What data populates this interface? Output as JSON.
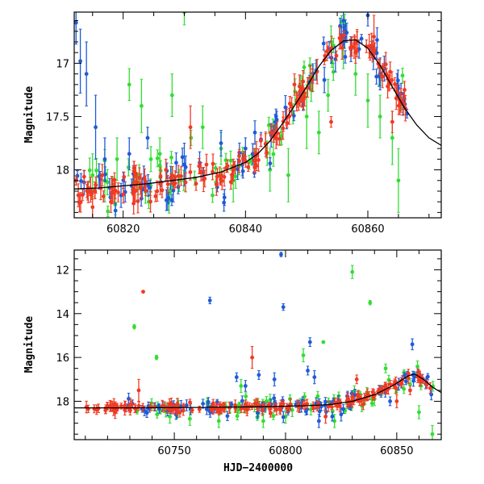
{
  "chart_data": [
    {
      "type": "scatter",
      "panel": "top",
      "xlabel": "",
      "ylabel": "Magnitude",
      "xlim": [
        60812,
        60872
      ],
      "ylim": [
        18.45,
        16.52
      ],
      "y_inverted": true,
      "xticks": [
        60820,
        60840,
        60860
      ],
      "yticks": [
        17,
        17.5,
        18
      ],
      "ytick_labels": [
        "17",
        "17.5",
        "18"
      ],
      "colors": {
        "blue": "#1f5bd8",
        "green": "#33dd33",
        "red": "#f03a24"
      },
      "series_meta": [
        {
          "key": "blue"
        },
        {
          "key": "green"
        },
        {
          "key": "red"
        }
      ],
      "model": [
        [
          60812,
          18.18
        ],
        [
          60816,
          18.17
        ],
        [
          60820,
          18.15
        ],
        [
          60824,
          18.13
        ],
        [
          60828,
          18.1
        ],
        [
          60832,
          18.07
        ],
        [
          60836,
          18.02
        ],
        [
          60840,
          17.93
        ],
        [
          60842,
          17.85
        ],
        [
          60844,
          17.73
        ],
        [
          60846,
          17.57
        ],
        [
          60848,
          17.4
        ],
        [
          60850,
          17.22
        ],
        [
          60852,
          17.03
        ],
        [
          60854,
          16.88
        ],
        [
          60856,
          16.79
        ],
        [
          60858,
          16.78
        ],
        [
          60860,
          16.86
        ],
        [
          60862,
          17.02
        ],
        [
          60864,
          17.22
        ],
        [
          60866,
          17.42
        ],
        [
          60868,
          17.58
        ],
        [
          60870,
          17.7
        ],
        [
          60872,
          17.77
        ]
      ],
      "outliers": {
        "blue": [
          [
            60812.3,
            16.62,
            0.2
          ],
          [
            60813,
            16.98,
            0.3
          ],
          [
            60814,
            17.1,
            0.3
          ],
          [
            60815.5,
            17.6,
            0.3
          ],
          [
            60817,
            17.9,
            0.2
          ],
          [
            60821,
            17.85,
            0.15
          ],
          [
            60824,
            17.7,
            0.1
          ],
          [
            60830,
            17.95,
            0.2
          ],
          [
            60836,
            17.75,
            0.12
          ],
          [
            60840,
            17.8,
            0.1
          ],
          [
            60856,
            16.6,
            0.1
          ],
          [
            60860,
            16.55,
            0.1
          ],
          [
            60862,
            17.1,
            0.15
          ]
        ],
        "green": [
          [
            60815,
            18.05,
            0.2
          ],
          [
            60817,
            18.1,
            0.2
          ],
          [
            60819,
            17.9,
            0.2
          ],
          [
            60821,
            17.2,
            0.15
          ],
          [
            60823,
            17.4,
            0.25
          ],
          [
            60826,
            17.85,
            0.15
          ],
          [
            60828,
            17.3,
            0.2
          ],
          [
            60830,
            16.52,
            0.12
          ],
          [
            60833,
            17.6,
            0.2
          ],
          [
            60836,
            17.8,
            0.15
          ],
          [
            60838,
            18.1,
            0.2
          ],
          [
            60844,
            18.0,
            0.2
          ],
          [
            60847,
            18.05,
            0.25
          ],
          [
            60850,
            17.5,
            0.3
          ],
          [
            60852,
            17.65,
            0.2
          ],
          [
            60853.5,
            17.3,
            0.15
          ],
          [
            60854,
            16.8,
            0.15
          ],
          [
            60856,
            16.85,
            0.2
          ],
          [
            60858,
            17.1,
            0.2
          ],
          [
            60860,
            17.35,
            0.25
          ],
          [
            60862,
            17.5,
            0.2
          ],
          [
            60864,
            17.7,
            0.25
          ],
          [
            60865,
            18.1,
            0.3
          ]
        ],
        "red": [
          [
            60815,
            18.35,
            0.15
          ],
          [
            60818,
            18.3,
            0.1
          ],
          [
            60822,
            18.2,
            0.1
          ],
          [
            60827,
            18.0,
            0.1
          ],
          [
            60831,
            17.6,
            0.2
          ],
          [
            60838,
            18.0,
            0.1
          ],
          [
            60845,
            17.7,
            0.1
          ],
          [
            60848,
            17.2,
            0.1
          ],
          [
            60854,
            17.55,
            0.05
          ],
          [
            60858,
            16.9,
            0.1
          ],
          [
            60861,
            16.75,
            0.2
          ],
          [
            60864,
            17.55,
            0.1
          ],
          [
            60866,
            17.25,
            0.08
          ]
        ]
      }
    },
    {
      "type": "scatter",
      "panel": "bottom",
      "xlabel": "HJD−2400000",
      "ylabel": "Magnitude",
      "xlim": [
        60705,
        60870
      ],
      "ylim": [
        19.75,
        11.1
      ],
      "y_inverted": true,
      "xticks": [
        60750,
        60800,
        60850
      ],
      "yticks": [
        12,
        14,
        16,
        18
      ],
      "ytick_labels": [
        "12",
        "14",
        "16",
        "18"
      ],
      "colors": {
        "blue": "#1f5bd8",
        "green": "#33dd33",
        "red": "#f03a24"
      },
      "series_meta": [
        {
          "key": "blue"
        },
        {
          "key": "green"
        },
        {
          "key": "red"
        }
      ],
      "model": [
        [
          60705,
          18.3
        ],
        [
          60730,
          18.3
        ],
        [
          60760,
          18.28
        ],
        [
          60790,
          18.25
        ],
        [
          60810,
          18.2
        ],
        [
          60820,
          18.15
        ],
        [
          60830,
          18.0
        ],
        [
          60840,
          17.7
        ],
        [
          60848,
          17.3
        ],
        [
          60855,
          16.85
        ],
        [
          60858,
          16.75
        ],
        [
          60862,
          17.0
        ],
        [
          60866,
          17.35
        ],
        [
          60870,
          17.6
        ]
      ],
      "outliers": {
        "blue": [
          [
            60766,
            13.4,
            0.15
          ],
          [
            60778,
            16.9,
            0.2
          ],
          [
            60782,
            17.3,
            0.25
          ],
          [
            60788,
            16.8,
            0.2
          ],
          [
            60795,
            17.0,
            0.3
          ],
          [
            60798,
            11.3,
            0.1
          ],
          [
            60799,
            13.7,
            0.15
          ],
          [
            60810,
            16.6,
            0.2
          ],
          [
            60811,
            15.3,
            0.2
          ],
          [
            60813,
            16.9,
            0.3
          ],
          [
            60815,
            18.9,
            0.3
          ],
          [
            60821,
            18.7,
            0.2
          ],
          [
            60825,
            18.6,
            0.3
          ],
          [
            60847,
            18.0,
            0.2
          ],
          [
            60857,
            15.4,
            0.25
          ]
        ],
        "green": [
          [
            60732,
            14.6,
            0.1
          ],
          [
            60742,
            16.0,
            0.1
          ],
          [
            60748,
            18.7,
            0.3
          ],
          [
            60757,
            18.8,
            0.3
          ],
          [
            60770,
            18.9,
            0.3
          ],
          [
            60780,
            17.3,
            0.3
          ],
          [
            60790,
            18.9,
            0.3
          ],
          [
            60800,
            18.7,
            0.3
          ],
          [
            60803,
            18.4,
            0.3
          ],
          [
            60808,
            15.9,
            0.3
          ],
          [
            60817,
            15.3,
            0.05
          ],
          [
            60822,
            18.9,
            0.3
          ],
          [
            60830,
            12.1,
            0.3
          ],
          [
            60838,
            13.5,
            0.1
          ],
          [
            60840,
            17.9,
            0.3
          ],
          [
            60845,
            16.5,
            0.2
          ],
          [
            60860,
            18.5,
            0.3
          ],
          [
            60866,
            19.5,
            0.4
          ]
        ],
        "red": [
          [
            60734,
            17.5,
            0.5
          ],
          [
            60736,
            13.0,
            0.05
          ],
          [
            60785,
            16.0,
            0.5
          ],
          [
            60818,
            18.7,
            0.3
          ],
          [
            60832,
            17.0,
            0.2
          ],
          [
            60850,
            18.0,
            0.3
          ],
          [
            60856,
            17.5,
            0.2
          ]
        ]
      }
    }
  ]
}
